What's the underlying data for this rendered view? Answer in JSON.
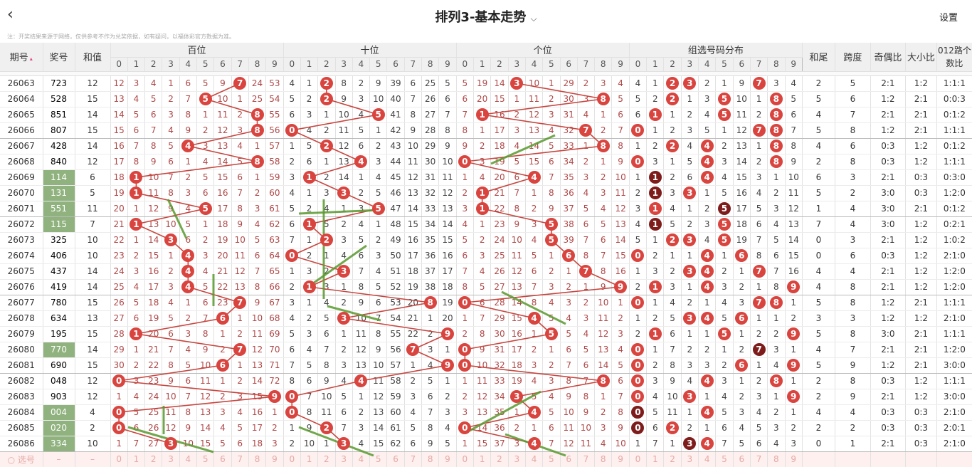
{
  "header": {
    "back_icon": "chevron-left-icon",
    "title": "排列3-基本走势",
    "dropdown_icon": "chevron-down-icon",
    "settings": "设置"
  },
  "notice": "注：开奖结果来源于网络，仅供参考不作为兑奖依据，如有疑问，以福体彩官方数据为准。",
  "columns": {
    "period": "期号",
    "sort_icon": "sort-icon",
    "number": "奖号",
    "sum": "和值",
    "sections": [
      "百位",
      "十位",
      "个位",
      "组选号码分布"
    ],
    "digits": [
      "0",
      "1",
      "2",
      "3",
      "4",
      "5",
      "6",
      "7",
      "8",
      "9"
    ],
    "tail": "和尾",
    "span": "跨度",
    "odd_even": "奇偶比",
    "big_small": "大小比",
    "road": "012路个数比"
  },
  "colors": {
    "ball": "#d9443f",
    "ball_repeat": "#7e1c1c",
    "trend_line": "#c8463f",
    "repeat_number_bg": "#8fb27e",
    "annotation_arrow": "#5a9a2e"
  },
  "rows": [
    {
      "period": "26063",
      "number": "723",
      "sum": "12",
      "hundreds": [
        12,
        3,
        4,
        1,
        6,
        5,
        9,
        0,
        24,
        53
      ],
      "tens": [
        4,
        1,
        0,
        8,
        2,
        9,
        39,
        6,
        25,
        5
      ],
      "units": [
        5,
        19,
        14,
        0,
        10,
        1,
        29,
        2,
        3,
        4
      ],
      "group": [
        4,
        1,
        0,
        0,
        2,
        1,
        9,
        0,
        3,
        4
      ],
      "tail": "2",
      "span": "5",
      "odd_even": "2:1",
      "big_small": "1:2",
      "road": "1:1:1"
    },
    {
      "period": "26064",
      "number": "528",
      "sum": "15",
      "hundreds": [
        13,
        4,
        5,
        2,
        7,
        0,
        10,
        1,
        25,
        54
      ],
      "tens": [
        5,
        2,
        0,
        9,
        3,
        10,
        40,
        7,
        26,
        6
      ],
      "units": [
        6,
        20,
        15,
        1,
        11,
        2,
        30,
        3,
        0,
        5
      ],
      "group": [
        5,
        2,
        0,
        1,
        3,
        0,
        10,
        1,
        0,
        5
      ],
      "tail": "5",
      "span": "6",
      "odd_even": "1:2",
      "big_small": "2:1",
      "road": "0:0:3"
    },
    {
      "period": "26065",
      "number": "851",
      "sum": "14",
      "hundreds": [
        14,
        5,
        6,
        3,
        8,
        1,
        11,
        2,
        0,
        55
      ],
      "tens": [
        6,
        3,
        1,
        10,
        4,
        0,
        41,
        8,
        27,
        7
      ],
      "units": [
        7,
        0,
        16,
        2,
        12,
        3,
        31,
        4,
        1,
        6
      ],
      "group": [
        6,
        0,
        1,
        2,
        4,
        0,
        11,
        2,
        0,
        6
      ],
      "tail": "4",
      "span": "7",
      "odd_even": "2:1",
      "big_small": "2:1",
      "road": "0:1:2"
    },
    {
      "period": "26066",
      "number": "807",
      "sum": "15",
      "hundreds": [
        15,
        6,
        7,
        4,
        9,
        2,
        12,
        3,
        0,
        56
      ],
      "tens": [
        0,
        4,
        2,
        11,
        5,
        1,
        42,
        9,
        28,
        8
      ],
      "units": [
        8,
        1,
        17,
        3,
        13,
        4,
        32,
        0,
        2,
        7
      ],
      "group": [
        0,
        1,
        2,
        3,
        5,
        1,
        12,
        0,
        0,
        7
      ],
      "tail": "5",
      "span": "8",
      "odd_even": "1:2",
      "big_small": "2:1",
      "road": "1:1:1"
    },
    {
      "period": "26067",
      "number": "428",
      "sum": "14",
      "hundreds": [
        16,
        7,
        8,
        5,
        0,
        3,
        13,
        4,
        1,
        57
      ],
      "tens": [
        1,
        5,
        0,
        12,
        6,
        2,
        43,
        10,
        29,
        9
      ],
      "units": [
        9,
        2,
        18,
        4,
        14,
        5,
        33,
        1,
        0,
        8
      ],
      "group": [
        1,
        2,
        0,
        4,
        0,
        2,
        13,
        1,
        0,
        8
      ],
      "tail": "4",
      "span": "6",
      "odd_even": "0:3",
      "big_small": "1:2",
      "road": "0:1:2"
    },
    {
      "period": "26068",
      "number": "840",
      "sum": "12",
      "hundreds": [
        17,
        8,
        9,
        6,
        1,
        4,
        14,
        5,
        0,
        58
      ],
      "tens": [
        2,
        6,
        1,
        13,
        0,
        3,
        44,
        11,
        30,
        10
      ],
      "units": [
        0,
        3,
        19,
        5,
        15,
        6,
        34,
        2,
        1,
        9
      ],
      "group": [
        0,
        3,
        1,
        5,
        0,
        3,
        14,
        2,
        0,
        9
      ],
      "tail": "2",
      "span": "8",
      "odd_even": "0:3",
      "big_small": "1:2",
      "road": "1:1:1"
    },
    {
      "period": "26069",
      "number": "114",
      "sum": "6",
      "hundreds": [
        18,
        0,
        10,
        7,
        2,
        5,
        15,
        6,
        1,
        59
      ],
      "tens": [
        3,
        0,
        2,
        14,
        1,
        4,
        45,
        12,
        31,
        11
      ],
      "units": [
        1,
        4,
        20,
        6,
        0,
        7,
        35,
        3,
        2,
        10
      ],
      "group": [
        1,
        0,
        2,
        6,
        0,
        4,
        15,
        3,
        1,
        10
      ],
      "tail": "6",
      "span": "3",
      "odd_even": "2:1",
      "big_small": "0:3",
      "road": "0:3:0"
    },
    {
      "period": "26070",
      "number": "131",
      "sum": "5",
      "hundreds": [
        19,
        0,
        11,
        8,
        3,
        6,
        16,
        7,
        2,
        60
      ],
      "tens": [
        4,
        1,
        3,
        0,
        2,
        5,
        46,
        13,
        32,
        12
      ],
      "units": [
        2,
        0,
        21,
        7,
        1,
        8,
        36,
        4,
        3,
        11
      ],
      "group": [
        2,
        0,
        3,
        0,
        1,
        5,
        16,
        4,
        2,
        11
      ],
      "tail": "5",
      "span": "2",
      "odd_even": "3:0",
      "big_small": "0:3",
      "road": "1:2:0"
    },
    {
      "period": "26071",
      "number": "551",
      "sum": "11",
      "hundreds": [
        20,
        1,
        12,
        9,
        4,
        0,
        17,
        8,
        3,
        61
      ],
      "tens": [
        5,
        2,
        4,
        1,
        3,
        0,
        47,
        14,
        33,
        13
      ],
      "units": [
        3,
        0,
        22,
        8,
        2,
        9,
        37,
        5,
        4,
        12
      ],
      "group": [
        3,
        0,
        4,
        1,
        2,
        0,
        17,
        5,
        3,
        12
      ],
      "tail": "1",
      "span": "4",
      "odd_even": "3:0",
      "big_small": "2:1",
      "road": "0:1:2"
    },
    {
      "period": "26072",
      "number": "115",
      "sum": "7",
      "hundreds": [
        21,
        0,
        13,
        10,
        5,
        1,
        18,
        9,
        4,
        62
      ],
      "tens": [
        6,
        0,
        5,
        2,
        4,
        1,
        48,
        15,
        34,
        14
      ],
      "units": [
        4,
        1,
        23,
        9,
        3,
        0,
        38,
        6,
        5,
        13
      ],
      "group": [
        4,
        0,
        5,
        2,
        3,
        0,
        18,
        6,
        4,
        13
      ],
      "tail": "7",
      "span": "4",
      "odd_even": "3:0",
      "big_small": "1:2",
      "road": "0:2:1"
    },
    {
      "period": "26073",
      "number": "325",
      "sum": "10",
      "hundreds": [
        22,
        1,
        14,
        0,
        6,
        2,
        19,
        10,
        5,
        63
      ],
      "tens": [
        7,
        1,
        0,
        3,
        5,
        2,
        49,
        16,
        35,
        15
      ],
      "units": [
        5,
        2,
        24,
        10,
        4,
        0,
        39,
        7,
        6,
        14
      ],
      "group": [
        5,
        1,
        0,
        0,
        4,
        0,
        19,
        7,
        5,
        14
      ],
      "tail": "0",
      "span": "3",
      "odd_even": "2:1",
      "big_small": "1:2",
      "road": "1:0:2"
    },
    {
      "period": "26074",
      "number": "406",
      "sum": "10",
      "hundreds": [
        23,
        2,
        15,
        1,
        0,
        3,
        20,
        11,
        6,
        64
      ],
      "tens": [
        0,
        2,
        1,
        4,
        6,
        3,
        50,
        17,
        36,
        16
      ],
      "units": [
        6,
        3,
        25,
        11,
        5,
        1,
        0,
        8,
        7,
        15
      ],
      "group": [
        0,
        2,
        1,
        1,
        0,
        1,
        0,
        8,
        6,
        15
      ],
      "tail": "0",
      "span": "6",
      "odd_even": "0:3",
      "big_small": "1:2",
      "road": "2:1:0"
    },
    {
      "period": "26075",
      "number": "437",
      "sum": "14",
      "hundreds": [
        24,
        3,
        16,
        2,
        0,
        4,
        21,
        12,
        7,
        65
      ],
      "tens": [
        1,
        3,
        2,
        0,
        7,
        4,
        51,
        18,
        37,
        17
      ],
      "units": [
        7,
        4,
        26,
        12,
        6,
        2,
        1,
        0,
        8,
        16
      ],
      "group": [
        1,
        3,
        2,
        0,
        0,
        2,
        1,
        0,
        7,
        16
      ],
      "tail": "4",
      "span": "4",
      "odd_even": "2:1",
      "big_small": "1:2",
      "road": "1:2:0"
    },
    {
      "period": "26076",
      "number": "419",
      "sum": "14",
      "hundreds": [
        25,
        4,
        17,
        3,
        0,
        5,
        22,
        13,
        8,
        66
      ],
      "tens": [
        2,
        0,
        3,
        1,
        8,
        5,
        52,
        19,
        38,
        18
      ],
      "units": [
        8,
        5,
        27,
        13,
        7,
        3,
        2,
        1,
        9,
        0
      ],
      "group": [
        2,
        0,
        3,
        1,
        0,
        3,
        2,
        1,
        8,
        0
      ],
      "tail": "4",
      "span": "8",
      "odd_even": "2:1",
      "big_small": "1:2",
      "road": "1:2:0"
    },
    {
      "period": "26077",
      "number": "780",
      "sum": "15",
      "hundreds": [
        26,
        5,
        18,
        4,
        1,
        6,
        23,
        0,
        9,
        67
      ],
      "tens": [
        3,
        1,
        4,
        2,
        9,
        6,
        53,
        20,
        0,
        19
      ],
      "units": [
        0,
        6,
        28,
        14,
        8,
        4,
        3,
        2,
        10,
        1
      ],
      "group": [
        0,
        1,
        4,
        2,
        1,
        4,
        3,
        0,
        0,
        1
      ],
      "tail": "5",
      "span": "8",
      "odd_even": "1:2",
      "big_small": "2:1",
      "road": "1:1:1"
    },
    {
      "period": "26078",
      "number": "634",
      "sum": "13",
      "hundreds": [
        27,
        6,
        19,
        5,
        2,
        7,
        0,
        1,
        10,
        68
      ],
      "tens": [
        4,
        2,
        5,
        0,
        10,
        7,
        54,
        21,
        1,
        20
      ],
      "units": [
        1,
        7,
        29,
        15,
        0,
        5,
        4,
        3,
        11,
        2
      ],
      "group": [
        1,
        2,
        5,
        0,
        0,
        5,
        0,
        1,
        1,
        2
      ],
      "tail": "3",
      "span": "3",
      "odd_even": "1:2",
      "big_small": "1:2",
      "road": "2:1:0"
    },
    {
      "period": "26079",
      "number": "195",
      "sum": "15",
      "hundreds": [
        28,
        0,
        20,
        6,
        3,
        8,
        1,
        2,
        11,
        69
      ],
      "tens": [
        5,
        3,
        6,
        1,
        11,
        8,
        55,
        22,
        2,
        0
      ],
      "units": [
        2,
        8,
        30,
        16,
        1,
        0,
        5,
        4,
        12,
        3
      ],
      "group": [
        2,
        0,
        6,
        1,
        1,
        0,
        1,
        2,
        2,
        0
      ],
      "tail": "5",
      "span": "8",
      "odd_even": "3:0",
      "big_small": "2:1",
      "road": "1:1:1"
    },
    {
      "period": "26080",
      "number": "770",
      "sum": "14",
      "hundreds": [
        29,
        1,
        21,
        7,
        4,
        9,
        2,
        0,
        12,
        70
      ],
      "tens": [
        6,
        4,
        7,
        2,
        12,
        9,
        56,
        0,
        3,
        1
      ],
      "units": [
        0,
        9,
        31,
        17,
        2,
        1,
        6,
        5,
        13,
        4
      ],
      "group": [
        0,
        1,
        7,
        2,
        2,
        1,
        2,
        0,
        3,
        1
      ],
      "tail": "4",
      "span": "7",
      "odd_even": "2:1",
      "big_small": "2:1",
      "road": "1:2:0"
    },
    {
      "period": "26081",
      "number": "690",
      "sum": "15",
      "hundreds": [
        30,
        2,
        22,
        8,
        5,
        10,
        0,
        1,
        13,
        71
      ],
      "tens": [
        7,
        5,
        8,
        3,
        13,
        10,
        57,
        1,
        4,
        0
      ],
      "units": [
        0,
        10,
        32,
        18,
        3,
        2,
        7,
        6,
        14,
        5
      ],
      "group": [
        0,
        2,
        8,
        3,
        3,
        2,
        0,
        1,
        4,
        0
      ],
      "tail": "5",
      "span": "9",
      "odd_even": "1:2",
      "big_small": "2:1",
      "road": "3:0:0"
    },
    {
      "period": "26082",
      "number": "048",
      "sum": "12",
      "hundreds": [
        0,
        3,
        23,
        9,
        6,
        11,
        1,
        2,
        14,
        72
      ],
      "tens": [
        8,
        6,
        9,
        4,
        0,
        11,
        58,
        2,
        5,
        1
      ],
      "units": [
        1,
        11,
        33,
        19,
        4,
        3,
        8,
        7,
        0,
        6
      ],
      "group": [
        0,
        3,
        9,
        4,
        0,
        3,
        1,
        2,
        0,
        1
      ],
      "tail": "2",
      "span": "8",
      "odd_even": "0:3",
      "big_small": "1:2",
      "road": "1:1:1"
    },
    {
      "period": "26083",
      "number": "903",
      "sum": "12",
      "hundreds": [
        1,
        4,
        24,
        10,
        7,
        12,
        2,
        3,
        15,
        0
      ],
      "tens": [
        0,
        7,
        10,
        5,
        1,
        12,
        59,
        3,
        6,
        2
      ],
      "units": [
        2,
        12,
        34,
        0,
        5,
        4,
        9,
        8,
        1,
        7
      ],
      "group": [
        0,
        4,
        10,
        0,
        1,
        4,
        2,
        3,
        1,
        0
      ],
      "tail": "2",
      "span": "9",
      "odd_even": "2:1",
      "big_small": "1:2",
      "road": "3:0:0"
    },
    {
      "period": "26084",
      "number": "004",
      "sum": "4",
      "hundreds": [
        0,
        5,
        25,
        11,
        8,
        13,
        3,
        4,
        16,
        1
      ],
      "tens": [
        0,
        8,
        11,
        6,
        2,
        13,
        60,
        4,
        7,
        3
      ],
      "units": [
        3,
        13,
        35,
        1,
        0,
        5,
        10,
        9,
        2,
        8
      ],
      "group": [
        0,
        5,
        11,
        1,
        0,
        5,
        3,
        4,
        2,
        1
      ],
      "tail": "4",
      "span": "4",
      "odd_even": "0:3",
      "big_small": "0:3",
      "road": "2:1:0"
    },
    {
      "period": "26085",
      "number": "020",
      "sum": "2",
      "hundreds": [
        0,
        6,
        26,
        12,
        9,
        14,
        4,
        5,
        17,
        2
      ],
      "tens": [
        1,
        9,
        0,
        7,
        3,
        14,
        61,
        5,
        8,
        4
      ],
      "units": [
        0,
        14,
        36,
        2,
        1,
        6,
        11,
        10,
        3,
        9
      ],
      "group": [
        0,
        6,
        0,
        2,
        1,
        6,
        4,
        5,
        3,
        2
      ],
      "tail": "2",
      "span": "2",
      "odd_even": "0:3",
      "big_small": "0:3",
      "road": "2:0:1"
    },
    {
      "period": "26086",
      "number": "334",
      "sum": "10",
      "hundreds": [
        1,
        7,
        27,
        0,
        10,
        15,
        5,
        6,
        18,
        3
      ],
      "tens": [
        2,
        10,
        1,
        0,
        4,
        15,
        62,
        6,
        9,
        5
      ],
      "units": [
        1,
        15,
        37,
        3,
        0,
        7,
        12,
        11,
        4,
        10
      ],
      "group": [
        1,
        7,
        1,
        0,
        0,
        7,
        5,
        6,
        4,
        3
      ],
      "tail": "0",
      "span": "1",
      "odd_even": "2:1",
      "big_small": "0:3",
      "road": "2:1:0"
    }
  ],
  "footer": {
    "radio_icon": "radio-circle-icon",
    "label": "选号",
    "number": "–",
    "sum": "–"
  }
}
